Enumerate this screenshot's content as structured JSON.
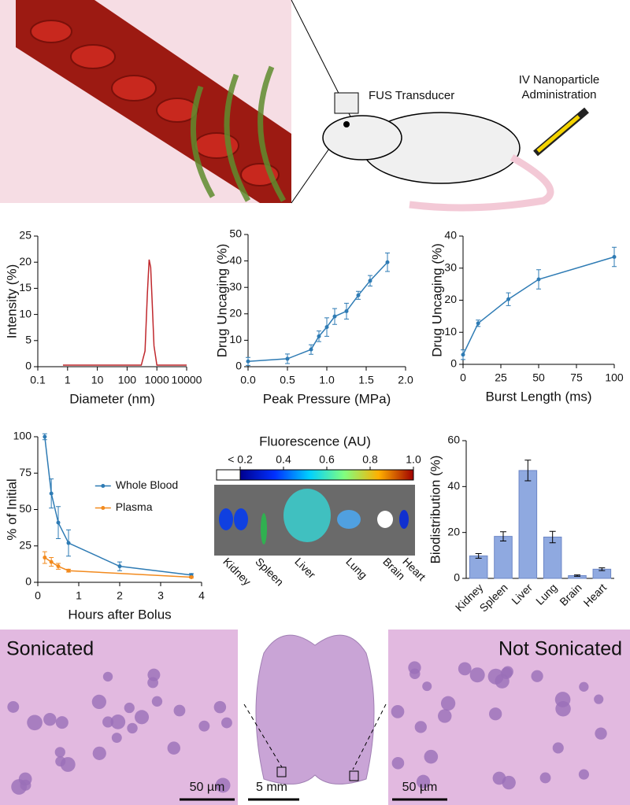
{
  "illustration": {
    "transducer_label": "FUS Transducer",
    "injection_label": [
      "IV Nanoparticle",
      "Administration"
    ]
  },
  "chart_data": [
    {
      "type": "line",
      "xlabel": "Diameter (nm)",
      "ylabel": "Intensity (%)",
      "xlog": true,
      "xlim": [
        0.1,
        10000
      ],
      "xticks": [
        0.1,
        1,
        10,
        100,
        1000,
        10000
      ],
      "ylim": [
        0,
        25
      ],
      "yticks": [
        0,
        5,
        10,
        15,
        20,
        25
      ],
      "x": [
        0.7,
        300,
        400,
        480,
        550,
        620,
        700,
        800,
        1000,
        10000
      ],
      "series": [
        {
          "color": "#c0282d",
          "values": [
            0.3,
            0.3,
            3,
            14,
            20.5,
            19,
            12,
            4,
            0.3,
            0.3
          ]
        }
      ]
    },
    {
      "type": "line",
      "xlabel": "Peak Pressure (MPa)",
      "ylabel": "Drug Uncaging (%)",
      "xlim": [
        0,
        2
      ],
      "xticks": [
        {
          "value": 0,
          "label": "0.0"
        },
        0.5,
        {
          "value": 1,
          "label": "1.0"
        },
        1.5,
        {
          "value": 2,
          "label": "2.0"
        }
      ],
      "ylim": [
        0,
        50
      ],
      "yticks": [
        0,
        10,
        20,
        30,
        40,
        50
      ],
      "x": [
        0,
        0.5,
        0.8,
        0.9,
        1.0,
        1.1,
        1.25,
        1.4,
        1.55,
        1.77
      ],
      "series": [
        {
          "color": "#2e7bb4",
          "values": [
            2,
            3,
            6.5,
            11.5,
            15,
            19,
            21,
            27,
            32.5,
            39.5
          ],
          "errors": [
            1.5,
            1.8,
            1.8,
            2,
            3.5,
            3,
            3,
            1.5,
            2,
            3.5
          ]
        }
      ]
    },
    {
      "type": "line",
      "xlabel": "Burst Length (ms)",
      "ylabel": "Drug Uncaging (%)",
      "xlim": [
        0,
        100
      ],
      "xticks": [
        0,
        25,
        50,
        75,
        100
      ],
      "ylim": [
        0,
        40
      ],
      "yticks": [
        0,
        10,
        20,
        30,
        40
      ],
      "x": [
        0,
        10,
        30,
        50,
        100
      ],
      "series": [
        {
          "color": "#2e7bb4",
          "values": [
            3,
            12.8,
            20.3,
            26.5,
            33.5
          ],
          "errors": [
            1.5,
            1,
            2,
            3,
            3
          ]
        }
      ]
    },
    {
      "type": "line",
      "xlabel": "Hours after Bolus",
      "ylabel": "% of Initial",
      "legend": "center right",
      "xlim": [
        0,
        4
      ],
      "xticks": [
        0,
        1,
        2,
        3,
        4
      ],
      "ylim": [
        0,
        100
      ],
      "yticks": [
        0,
        25,
        50,
        75,
        100
      ],
      "series": [
        {
          "name": "Whole Blood",
          "color": "#2e7bb4",
          "x": [
            0.17,
            0.33,
            0.5,
            0.75,
            2,
            3.75
          ],
          "values": [
            100,
            61,
            41,
            27,
            11,
            5
          ],
          "errors": [
            2,
            10,
            11,
            9,
            3,
            1
          ]
        },
        {
          "name": "Plasma",
          "color": "#f28a1e",
          "x": [
            0.17,
            0.33,
            0.5,
            0.75,
            3.75
          ],
          "values": [
            17,
            14,
            11,
            8,
            3.5
          ],
          "errors": [
            4,
            3,
            2,
            1,
            0.5
          ]
        }
      ]
    },
    {
      "type": "bar",
      "ylabel": "Biodistribution (%)",
      "categories": [
        "Kidney",
        "Spleen",
        "Liver",
        "Lung",
        "Brain",
        "Heart"
      ],
      "values": [
        9.8,
        18.3,
        47,
        18,
        1.2,
        4
      ],
      "errors": [
        1,
        2,
        4.5,
        2.5,
        0.3,
        0.6
      ],
      "color": "#8fa9e0",
      "ylim": [
        0,
        60
      ],
      "yticks": [
        0,
        20,
        40,
        60
      ]
    }
  ],
  "fluorescence": {
    "title": "Fluorescence (AU)",
    "range": [
      0.2,
      1.0
    ],
    "ticks": [
      {
        "value": 0.2,
        "label": "< 0.2"
      },
      0.4,
      0.6,
      0.8,
      {
        "value": 1.0,
        "label": "1.0"
      }
    ],
    "organs": [
      "Kidney",
      "Spleen",
      "Liver",
      "Lung",
      "Brain",
      "Heart"
    ]
  },
  "histology": {
    "left_label": "Sonicated",
    "right_label": "Not Sonicated",
    "left_scale": "50 µm",
    "center_scale": "5 mm",
    "right_scale": "50 µm"
  }
}
